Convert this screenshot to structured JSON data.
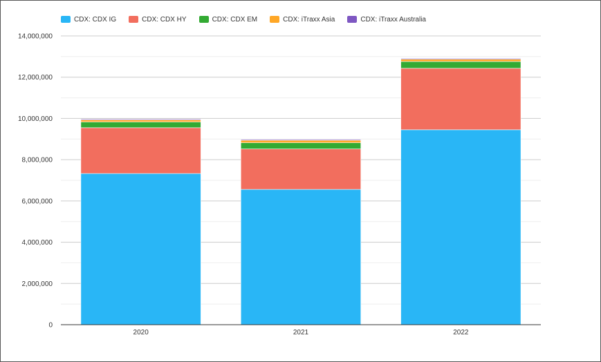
{
  "chart_data": {
    "type": "bar",
    "stacked": true,
    "categories": [
      "2020",
      "2021",
      "2022"
    ],
    "series": [
      {
        "name": "CDX: CDX IG",
        "color": "#29b6f6",
        "values": [
          7330000,
          6560000,
          9450000
        ]
      },
      {
        "name": "CDX: CDX HY",
        "color": "#f26e5e",
        "values": [
          2220000,
          1960000,
          2980000
        ]
      },
      {
        "name": "CDX: CDX EM",
        "color": "#33aa33",
        "values": [
          280000,
          300000,
          330000
        ]
      },
      {
        "name": "CDX: iTraxx Asia",
        "color": "#ffa726",
        "values": [
          100000,
          120000,
          110000
        ]
      },
      {
        "name": "CDX: iTraxx Australia",
        "color": "#7e57c2",
        "values": [
          40000,
          40000,
          40000
        ]
      }
    ],
    "y_ticks": [
      "0",
      "2,000,000",
      "4,000,000",
      "6,000,000",
      "8,000,000",
      "10,000,000",
      "12,000,000",
      "14,000,000"
    ],
    "ylim": [
      0,
      14000000
    ],
    "grid": true,
    "legend": "top-left",
    "title": "",
    "xlabel": "",
    "ylabel": ""
  }
}
